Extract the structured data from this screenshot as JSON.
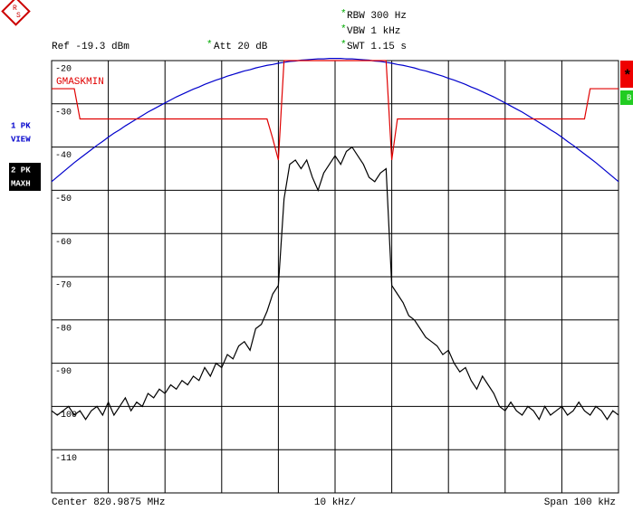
{
  "header": {
    "logo": [
      "R",
      "S"
    ],
    "ref": "Ref -19.3 dBm",
    "settings": [
      {
        "mark": "*",
        "text": "RBW 300 Hz"
      },
      {
        "mark": "*",
        "text": "VBW 1 kHz"
      },
      {
        "mark": "*",
        "text": "SWT 1.15 s"
      },
      {
        "mark": "*",
        "text": "Att  20 dB"
      }
    ]
  },
  "side": {
    "traces": [
      {
        "line1": "1 PK",
        "line2": "VIEW"
      },
      {
        "line1": "2 PK",
        "line2": "MAXH"
      }
    ],
    "flags": [
      "*",
      "B"
    ]
  },
  "footer": {
    "center": "Center 820.9875 MHz",
    "div": "10 kHz/",
    "span": "Span 100 kHz"
  },
  "chart_data": {
    "type": "line",
    "ylim": [
      -120,
      -20
    ],
    "yticks": [
      -20,
      -30,
      -40,
      -50,
      -60,
      -70,
      -80,
      -90,
      -100,
      -110
    ],
    "grid": true,
    "annotations": [
      "GMASKMIN"
    ],
    "series": [
      {
        "name": "1 PK VIEW",
        "color": "#0000cc",
        "values": [
          -48.0,
          -46.9,
          -45.8,
          -44.7,
          -43.6,
          -42.6,
          -41.6,
          -40.6,
          -39.6,
          -38.7,
          -37.7,
          -36.8,
          -36.0,
          -35.1,
          -34.3,
          -33.5,
          -32.7,
          -31.9,
          -31.2,
          -30.5,
          -29.8,
          -29.1,
          -28.4,
          -27.8,
          -27.2,
          -26.6,
          -26.1,
          -25.5,
          -25.0,
          -24.5,
          -24.1,
          -23.6,
          -23.2,
          -22.8,
          -22.4,
          -22.1,
          -21.7,
          -21.4,
          -21.1,
          -20.9,
          -20.6,
          -20.4,
          -20.2,
          -20.1,
          -19.9,
          -19.8,
          -19.7,
          -19.6,
          -19.6,
          -19.5,
          -19.5,
          -19.5,
          -19.6,
          -19.6,
          -19.7,
          -19.8,
          -19.9,
          -20.1,
          -20.2,
          -20.4,
          -20.6,
          -20.9,
          -21.1,
          -21.4,
          -21.7,
          -22.1,
          -22.4,
          -22.8,
          -23.2,
          -23.6,
          -24.1,
          -24.5,
          -25.0,
          -25.5,
          -26.1,
          -26.6,
          -27.2,
          -27.8,
          -28.4,
          -29.1,
          -29.8,
          -30.5,
          -31.2,
          -31.9,
          -32.7,
          -33.5,
          -34.3,
          -35.1,
          -36.0,
          -36.8,
          -37.7,
          -38.7,
          -39.6,
          -40.6,
          -41.6,
          -42.6,
          -43.6,
          -44.7,
          -45.8,
          -46.9,
          -48.0
        ]
      },
      {
        "name": "2 PK MAXH",
        "color": "#000000",
        "values": [
          -101,
          -102,
          -101,
          -100,
          -102,
          -101,
          -103,
          -101,
          -100,
          -102,
          -99,
          -102,
          -100,
          -98,
          -101,
          -99,
          -100,
          -97,
          -98,
          -96,
          -97,
          -95,
          -96,
          -94,
          -95,
          -93,
          -94,
          -91,
          -93,
          -90,
          -91,
          -88,
          -89,
          -86,
          -85,
          -87,
          -82,
          -81,
          -78,
          -74,
          -72,
          -52,
          -44,
          -43,
          -45,
          -43,
          -47,
          -50,
          -46,
          -44,
          -42,
          -44,
          -41,
          -40,
          -42,
          -44,
          -47,
          -48,
          -46,
          -45,
          -72,
          -74,
          -76,
          -79,
          -80,
          -82,
          -84,
          -85,
          -86,
          -88,
          -87,
          -90,
          -92,
          -91,
          -94,
          -96,
          -93,
          -95,
          -97,
          -100,
          -101,
          -99,
          -101,
          -102,
          -100,
          -101,
          -103,
          -100,
          -102,
          -101,
          -100,
          -102,
          -101,
          -99,
          -101,
          -102,
          -100,
          -101,
          -103,
          -101,
          -102
        ]
      },
      {
        "name": "GMASKMIN",
        "color": "#e00000",
        "values": [
          -26.5,
          -26.5,
          -26.5,
          -26.5,
          -26.5,
          -33.5,
          -33.5,
          -33.5,
          -33.5,
          -33.5,
          -33.5,
          -33.5,
          -33.5,
          -33.5,
          -33.5,
          -33.5,
          -33.5,
          -33.5,
          -33.5,
          -33.5,
          -33.5,
          -33.5,
          -33.5,
          -33.5,
          -33.5,
          -33.5,
          -33.5,
          -33.5,
          -33.5,
          -33.5,
          -33.5,
          -33.5,
          -33.5,
          -33.5,
          -33.5,
          -33.5,
          -33.5,
          -33.5,
          -33.5,
          -38,
          -43,
          -20,
          -20,
          -20,
          -20,
          -20,
          -20,
          -20,
          -20,
          -20,
          -20,
          -20,
          -20,
          -20,
          -20,
          -20,
          -20,
          -20,
          -20,
          -20,
          -43,
          -33.5,
          -33.5,
          -33.5,
          -33.5,
          -33.5,
          -33.5,
          -33.5,
          -33.5,
          -33.5,
          -33.5,
          -33.5,
          -33.5,
          -33.5,
          -33.5,
          -33.5,
          -33.5,
          -33.5,
          -33.5,
          -33.5,
          -33.5,
          -33.5,
          -33.5,
          -33.5,
          -33.5,
          -33.5,
          -33.5,
          -33.5,
          -33.5,
          -33.5,
          -33.5,
          -33.5,
          -33.5,
          -33.5,
          -33.5,
          -26.5,
          -26.5,
          -26.5,
          -26.5,
          -26.5,
          -26.5
        ]
      }
    ]
  }
}
